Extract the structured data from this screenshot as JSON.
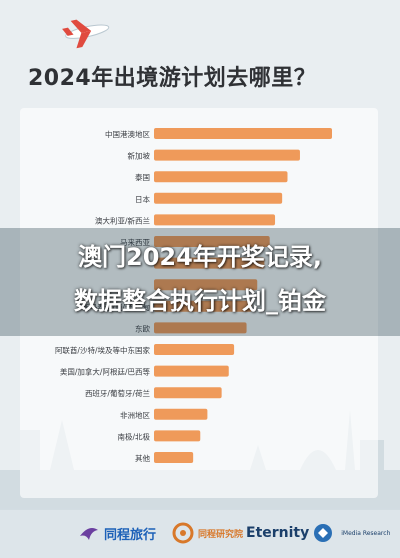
{
  "chart_data": {
    "type": "bar",
    "orientation": "horizontal",
    "title": "2024年出境游计划去哪里？",
    "categories": [
      "中国港澳地区",
      "新加坡",
      "泰国",
      "日本",
      "澳大利亚/新西兰",
      "马来西亚",
      "",
      "",
      "新马泰越/柬/老/缅甸",
      "东欧",
      "阿联酋/沙特/埃及等中东国家",
      "美国/加拿大/阿根廷/巴西等",
      "西班牙/葡萄牙/荷兰",
      "非洲地区",
      "南极/北极",
      "其他"
    ],
    "values": [
      100,
      82,
      75,
      72,
      68,
      65,
      62,
      58,
      55,
      52,
      45,
      42,
      38,
      30,
      26,
      22
    ],
    "unit": "relative share (unlabeled)",
    "xlim": [
      0,
      100
    ],
    "bar_color": "#ef9a5a",
    "grid": false,
    "legend": "none"
  },
  "overlay": {
    "line1": "澳门2024年开奖记录,",
    "line2": "数据整合执行计划_铂金"
  },
  "logos": {
    "tongcheng": "同程旅行",
    "research": "同程研究院",
    "eternity": "Eternity",
    "eternity_sub": "iMedia Research"
  },
  "colors": {
    "background": "#e9eef1",
    "bar": "#ef9a5a",
    "title": "#2f3135",
    "tongcheng_blue": "#1d61b8"
  }
}
